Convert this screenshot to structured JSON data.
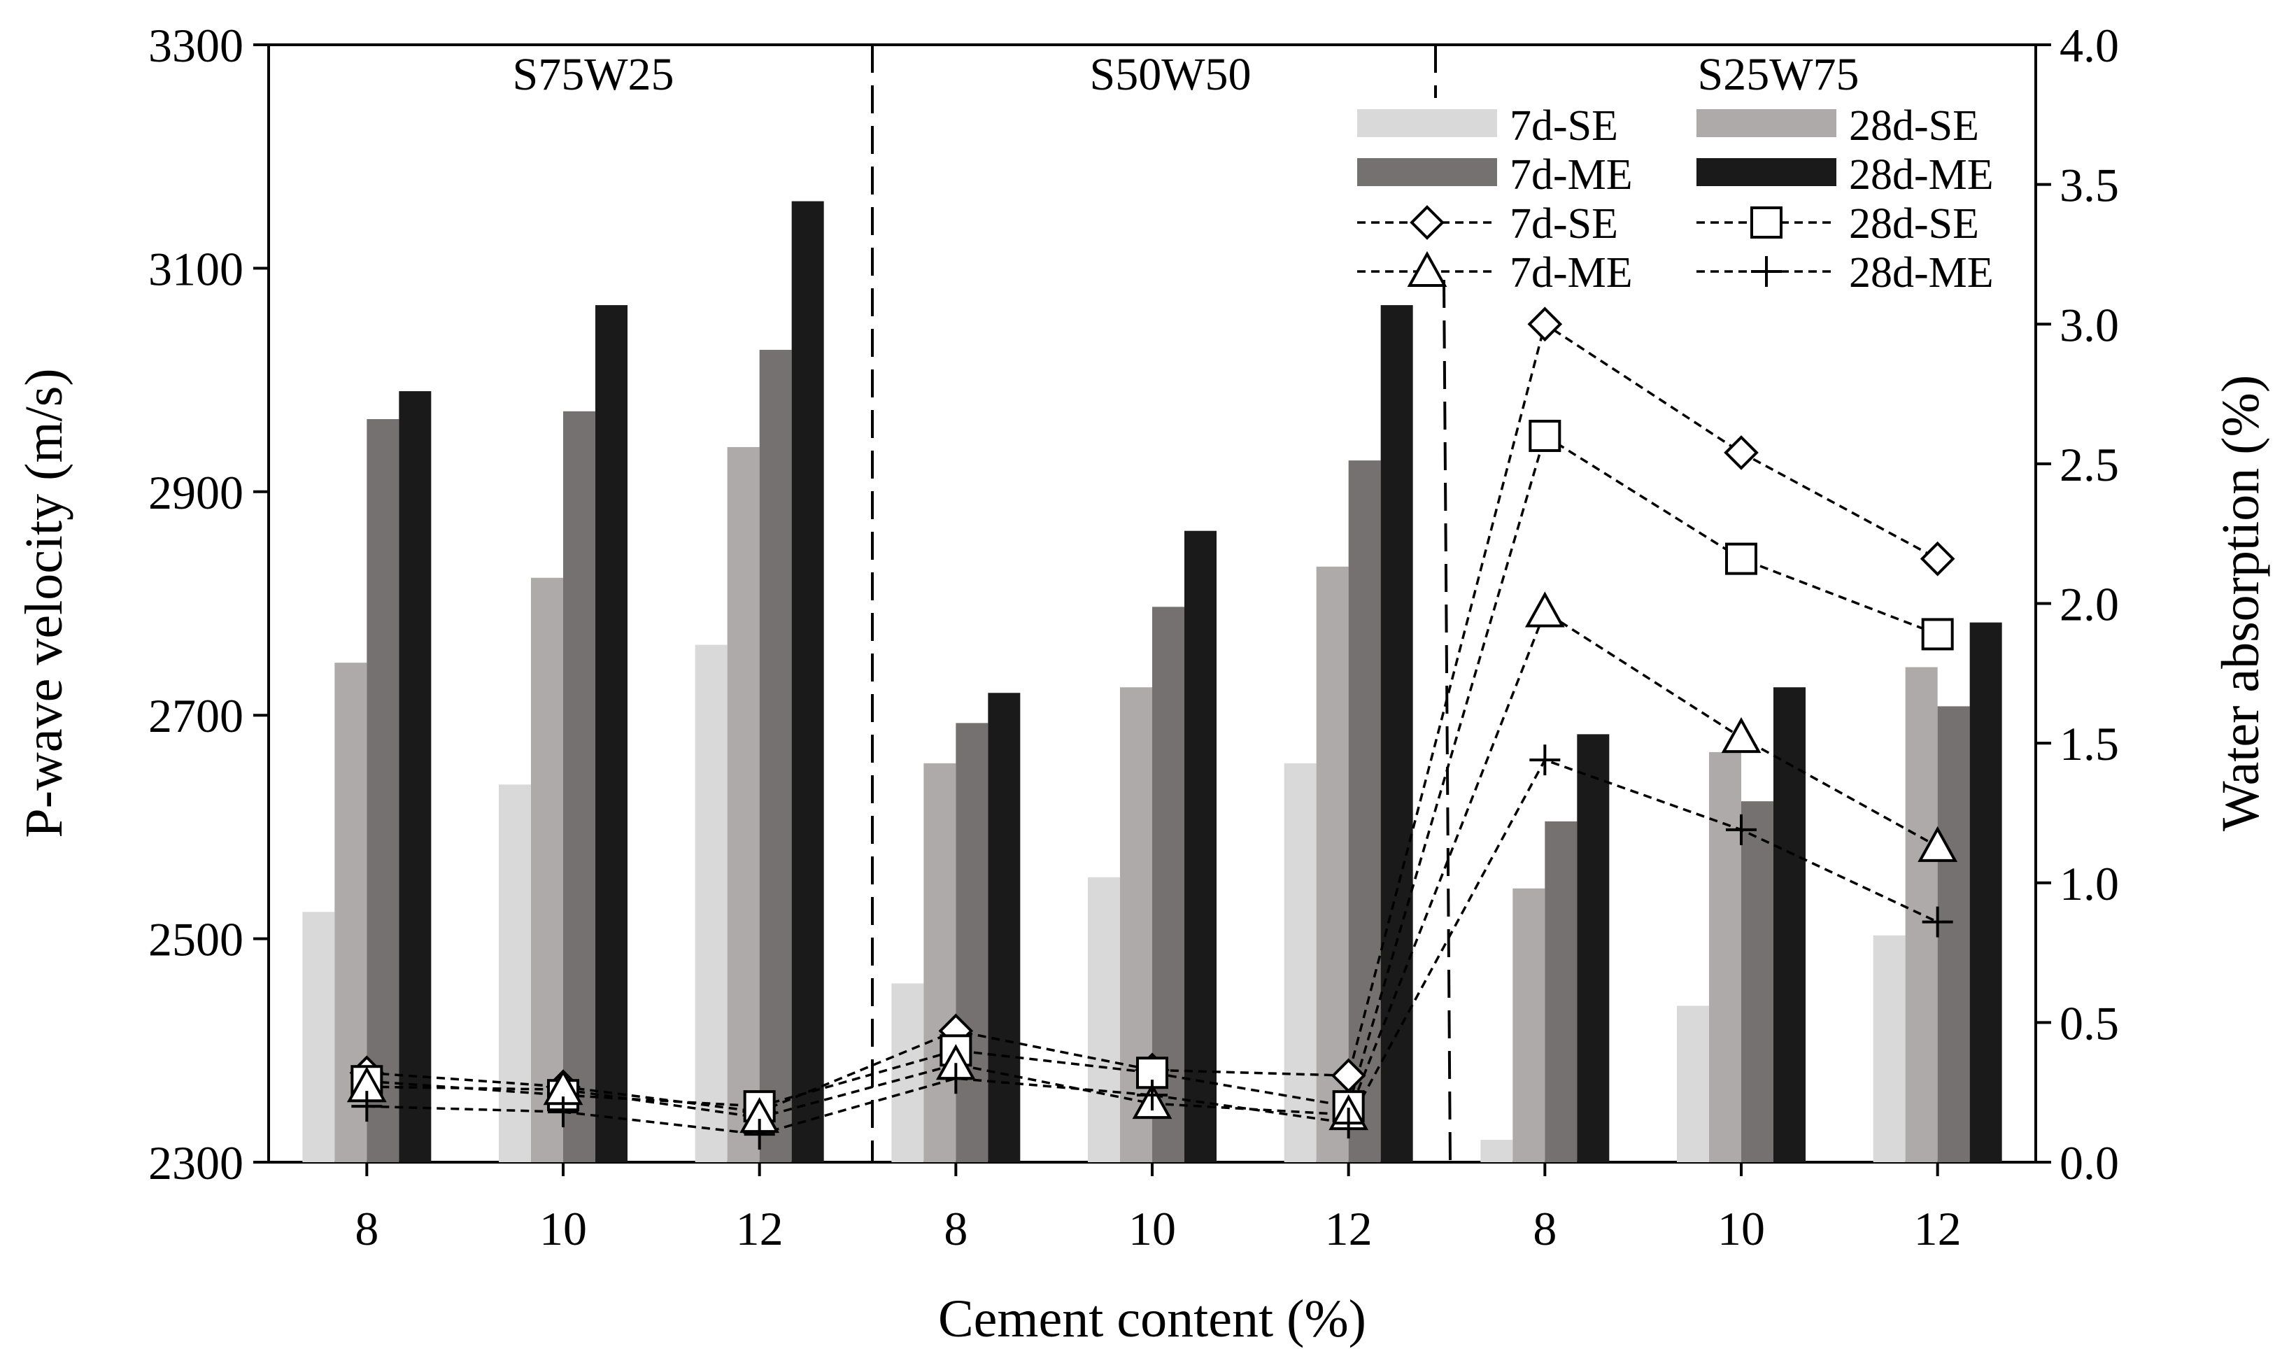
{
  "chart_data": {
    "type": "bar",
    "title": "",
    "xlabel": "Cement content (%)",
    "ylabel": "P-wave velocity (m/s)",
    "y2label": "Water absorption (%)",
    "ylim": [
      2300,
      3300
    ],
    "y2lim": [
      0.0,
      4.0
    ],
    "yticks": [
      "2300",
      "2500",
      "2700",
      "2900",
      "3100",
      "3300"
    ],
    "y2ticks": [
      "0.0",
      "0.5",
      "1.0",
      "1.5",
      "2.0",
      "2.5",
      "3.0",
      "3.5",
      "4.0"
    ],
    "categories": [
      "8",
      "10",
      "12",
      "8",
      "10",
      "12",
      "8",
      "10",
      "12"
    ],
    "groups": [
      "S75W25",
      "S50W50",
      "S25W75"
    ],
    "series": [
      {
        "name": "7d-SE",
        "color": "#d9d9d9",
        "values": [
          2524,
          2638,
          2763,
          2460,
          2555,
          2657,
          2320,
          2440,
          2503
        ]
      },
      {
        "name": "28d-SE",
        "color": "#aeaaaa",
        "values": [
          2747,
          2823,
          2940,
          2657,
          2725,
          2833,
          2545,
          2667,
          2743
        ]
      },
      {
        "name": "7d-ME",
        "color": "#767171",
        "values": [
          2965,
          2972,
          3027,
          2693,
          2797,
          2928,
          2605,
          2623,
          2708
        ]
      },
      {
        "name": "28d-ME",
        "color": "#1a1a1a",
        "values": [
          2990,
          3067,
          3160,
          2720,
          2865,
          3067,
          2683,
          2725,
          2783
        ]
      }
    ],
    "line_series": [
      {
        "name": "7d-SE",
        "marker": "diamond",
        "values": [
          0.32,
          0.27,
          0.18,
          0.47,
          0.33,
          0.31,
          3.0,
          2.54,
          2.16
        ]
      },
      {
        "name": "28d-SE",
        "marker": "square",
        "values": [
          0.29,
          0.24,
          0.2,
          0.4,
          0.32,
          0.2,
          2.6,
          2.16,
          1.89
        ]
      },
      {
        "name": "7d-ME",
        "marker": "triangle",
        "values": [
          0.27,
          0.26,
          0.16,
          0.35,
          0.21,
          0.17,
          1.97,
          1.52,
          1.13
        ]
      },
      {
        "name": "28d-ME",
        "marker": "plus",
        "values": [
          0.2,
          0.18,
          0.1,
          0.3,
          0.24,
          0.14,
          1.44,
          1.19,
          0.86
        ]
      }
    ],
    "legend": [
      {
        "label": "7d-SE",
        "kind": "bar",
        "color": "#d9d9d9"
      },
      {
        "label": "28d-SE",
        "kind": "bar",
        "color": "#aeaaaa"
      },
      {
        "label": "7d-ME",
        "kind": "bar",
        "color": "#767171"
      },
      {
        "label": "28d-ME",
        "kind": "bar",
        "color": "#1a1a1a"
      },
      {
        "label": "7d-SE",
        "kind": "line",
        "marker": "diamond"
      },
      {
        "label": "28d-SE",
        "kind": "line",
        "marker": "square"
      },
      {
        "label": "7d-ME",
        "kind": "line",
        "marker": "triangle"
      },
      {
        "label": "28d-ME",
        "kind": "line",
        "marker": "plus"
      }
    ],
    "legend_position": "top-right",
    "grid": false
  }
}
